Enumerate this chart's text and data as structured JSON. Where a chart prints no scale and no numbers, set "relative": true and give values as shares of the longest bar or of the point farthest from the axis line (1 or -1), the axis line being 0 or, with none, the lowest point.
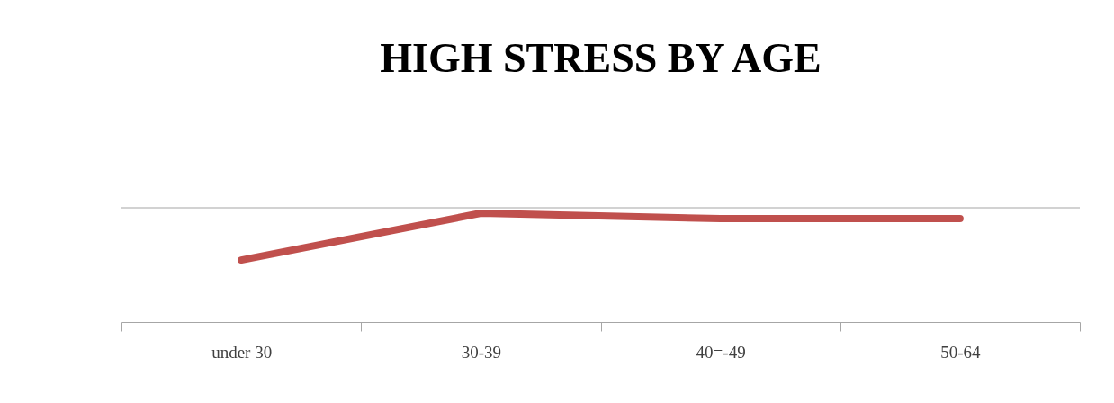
{
  "chart_data": {
    "type": "line",
    "title": "HIGH STRESS BY AGE",
    "relative": true,
    "categories": [
      "under 30",
      "30-39",
      "40=-49",
      "50-64"
    ],
    "values": [
      0.57,
      1,
      0.95,
      0.95
    ],
    "color": "#c0504d",
    "ref_lines": [
      {
        "axis": "y",
        "value": 1.05,
        "color": "#a6a6a6"
      }
    ]
  }
}
